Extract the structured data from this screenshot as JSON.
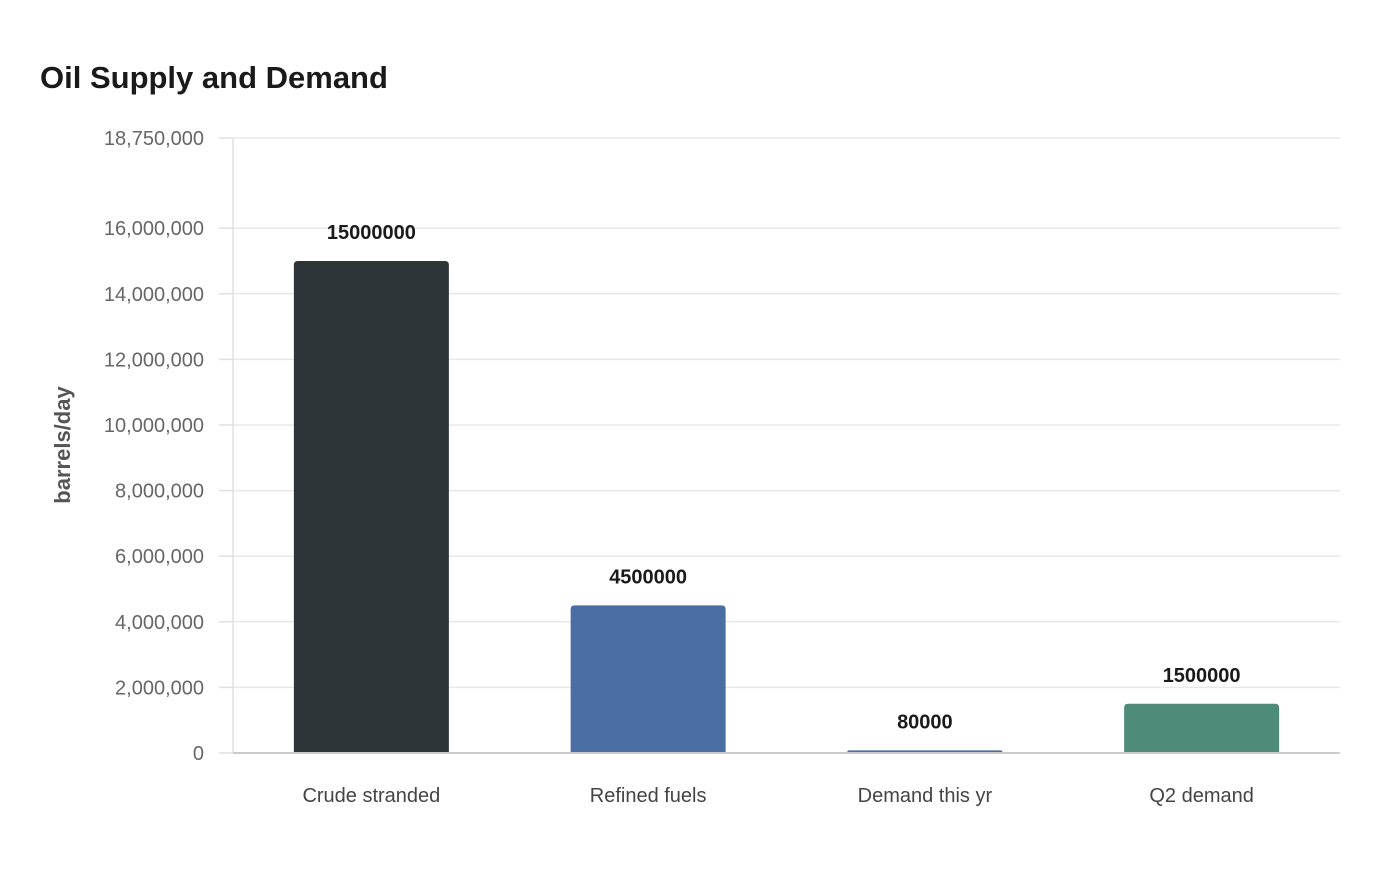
{
  "chart_data": {
    "type": "bar",
    "title": "Oil Supply and Demand",
    "xlabel": "",
    "ylabel": "barrels/day",
    "categories": [
      "Crude stranded",
      "Refined fuels",
      "Demand this yr",
      "Q2 demand"
    ],
    "values": [
      15000000,
      4500000,
      80000,
      1500000
    ],
    "data_labels": [
      "15000000",
      "4500000",
      "80000",
      "1500000"
    ],
    "bar_colors": [
      "#2e3538",
      "#4a6ea3",
      "#4a6ea3",
      "#4e8c79"
    ],
    "ylim": [
      0,
      18750000
    ],
    "yticks": [
      0,
      2000000,
      4000000,
      6000000,
      8000000,
      10000000,
      12000000,
      14000000,
      16000000,
      18750000
    ],
    "ytick_labels": [
      "0",
      "2,000,000",
      "4,000,000",
      "6,000,000",
      "8,000,000",
      "10,000,000",
      "12,000,000",
      "14,000,000",
      "16,000,000",
      "18,750,000"
    ],
    "grid": true,
    "legend": "none"
  }
}
